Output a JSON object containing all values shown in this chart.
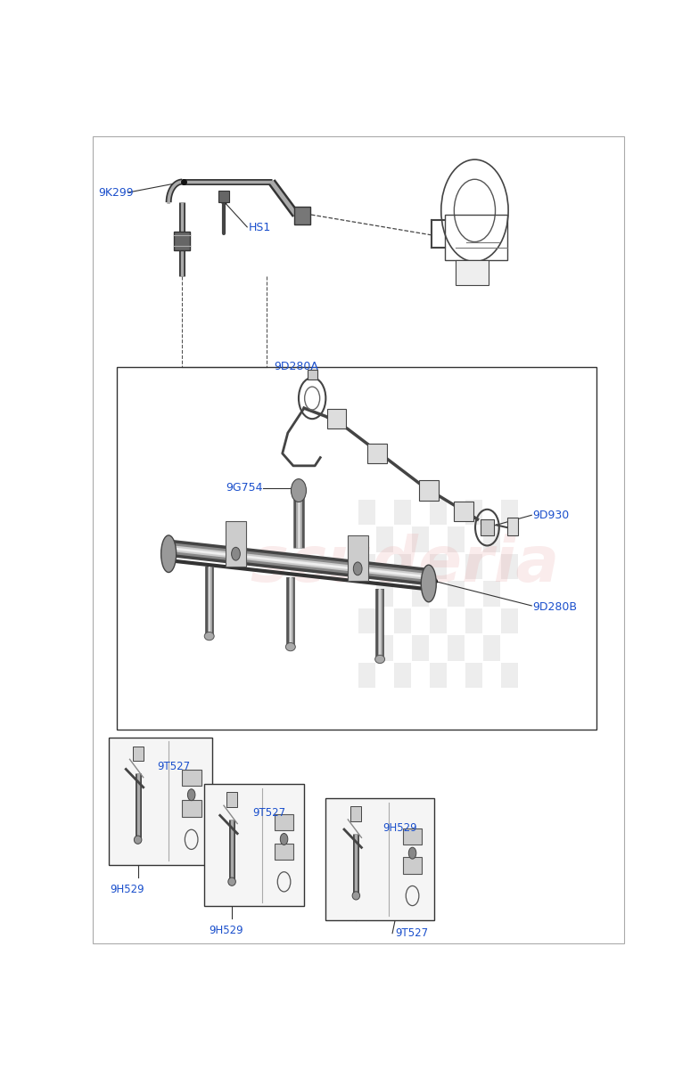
{
  "background_color": "#ffffff",
  "label_color": "#1a4fcc",
  "parts": [
    {
      "id": "9K299"
    },
    {
      "id": "HS1"
    },
    {
      "id": "9D280A"
    },
    {
      "id": "9D930"
    },
    {
      "id": "9G754"
    },
    {
      "id": "9D280B"
    },
    {
      "id": "9T527"
    },
    {
      "id": "9H529"
    }
  ]
}
